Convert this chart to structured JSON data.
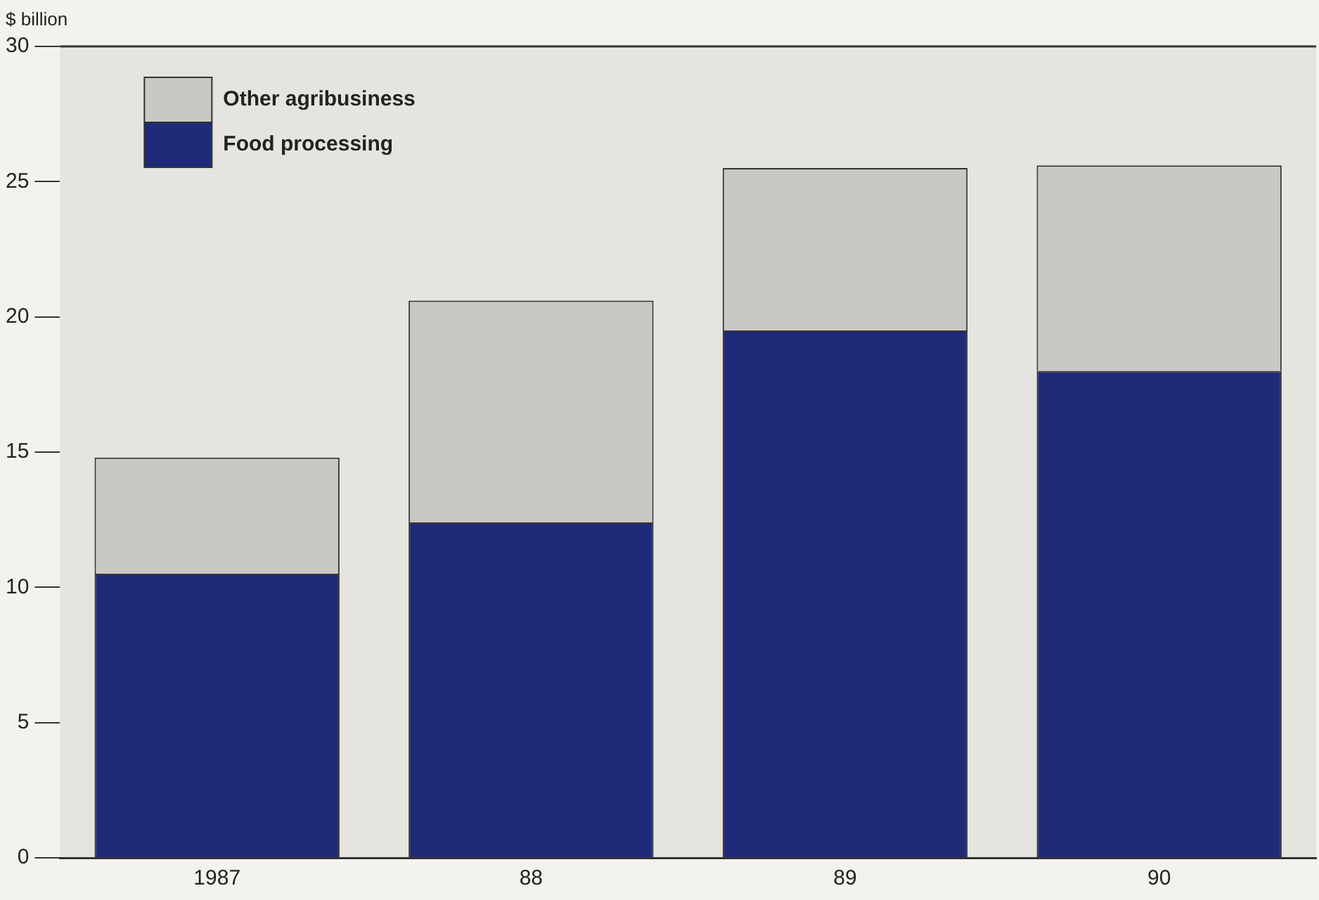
{
  "chart_data": {
    "type": "bar",
    "ylabel": "$ billion",
    "categories": [
      "1987",
      "88",
      "89",
      "90"
    ],
    "stacked": true,
    "series": [
      {
        "name": "Food processing",
        "color": "#1f2a78",
        "values": [
          10.5,
          12.4,
          19.5,
          18.0
        ]
      },
      {
        "name": "Other agribusiness",
        "color": "#c9c8c3",
        "values": [
          4.3,
          8.2,
          6.0,
          7.6
        ]
      }
    ],
    "ylim": [
      0,
      30
    ],
    "yticks": [
      0,
      5,
      10,
      15,
      20,
      25,
      30
    ],
    "grid": false,
    "legend": "top left"
  }
}
